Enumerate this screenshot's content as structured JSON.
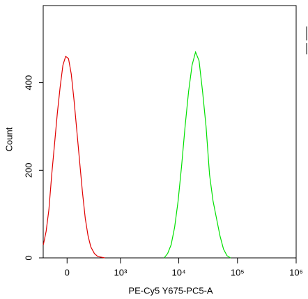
{
  "chart_data": {
    "type": "line",
    "x_label": "PE-Cy5 Y675-PC5-A",
    "y_label": "Count",
    "xscale": "asinh",
    "xscale_width": 250,
    "xlim": [
      -270,
      1000000
    ],
    "ylim": [
      0,
      576
    ],
    "xticks": [
      0,
      {
        "value": 1000,
        "label": "10³"
      },
      {
        "value": 10000,
        "label": "10⁴"
      },
      {
        "value": 100000,
        "label": "10⁵"
      },
      {
        "value": 1000000,
        "label": "10⁶"
      }
    ],
    "yticks": [
      0,
      200,
      400
    ],
    "series": [
      {
        "name": "red",
        "color": "#e00000",
        "x": [
          -268,
          -230,
          -194,
          -160,
          -128,
          -98,
          -69,
          -41,
          -14,
          14,
          41,
          69,
          98,
          128,
          160,
          194,
          230,
          268,
          322,
          379,
          520
        ],
        "values": [
          30,
          60,
          110,
          190,
          260,
          330,
          390,
          440,
          460,
          455,
          420,
          360,
          290,
          220,
          150,
          90,
          50,
          25,
          10,
          3,
          0
        ]
      },
      {
        "name": "green",
        "color": "#00e000",
        "x": [
          5640,
          6460,
          7410,
          8500,
          9740,
          11170,
          12810,
          14700,
          16850,
          19320,
          22160,
          25420,
          29150,
          33440,
          38340,
          43960,
          50430,
          57830,
          66330,
          76060
        ],
        "values": [
          0,
          10,
          30,
          70,
          130,
          210,
          300,
          380,
          440,
          470,
          450,
          380,
          300,
          190,
          130,
          90,
          50,
          20,
          5,
          0
        ]
      }
    ]
  }
}
